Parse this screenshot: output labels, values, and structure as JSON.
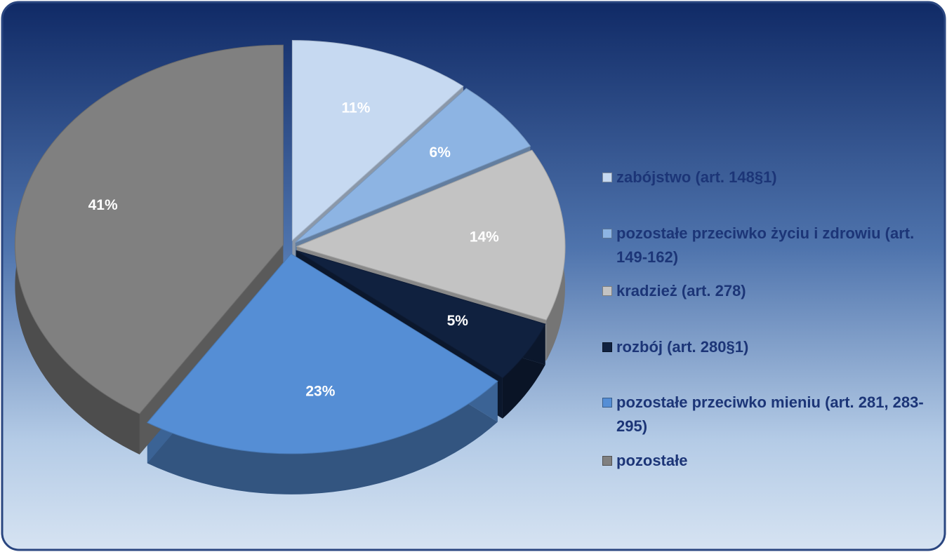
{
  "chart_data": {
    "type": "pie",
    "categories": [
      "zabójstwo (art. 148§1)",
      "pozostałe przeciwko życiu i zdrowiu (art. 149-162)",
      "kradzież (art. 278)",
      "rozbój (art. 280§1)",
      "pozostałe przeciwko mieniu (art. 281, 283-295)",
      "pozostałe"
    ],
    "values": [
      11,
      6,
      14,
      5,
      23,
      41
    ],
    "value_labels": [
      "11%",
      "6%",
      "14%",
      "5%",
      "23%",
      "41%"
    ],
    "colors": [
      "#c6d9f1",
      "#8db4e3",
      "#c3c3c3",
      "#10213f",
      "#558ed5",
      "#808080"
    ],
    "legend": "right"
  }
}
